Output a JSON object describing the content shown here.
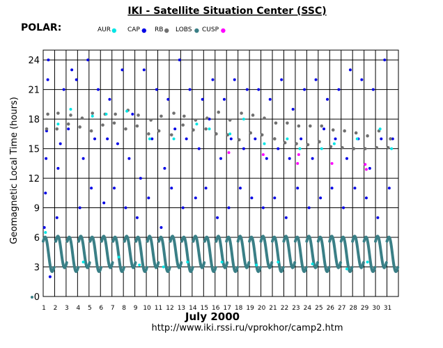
{
  "title": "IKI - Satellite Situation Center (SSC)",
  "satellite": "POLAR:",
  "footer_url": "http://www.iki.rssi.ru/vprokhor/camp2.htm",
  "colors": {
    "AUR": "#00e5e5",
    "CAP": "#0000e6",
    "RB": "#707070",
    "LOBS": "#3a7f86",
    "CUSP": "#ff00ff"
  },
  "chart_data": {
    "type": "scatter",
    "title": "IKI - Satellite Situation Center (SSC)",
    "ylabel": "Geomagnetic  Local Time  (hours)",
    "xlabel": "July    2000",
    "xlim": [
      1,
      32
    ],
    "ylim": [
      0,
      25
    ],
    "y_ticks": [
      0,
      3,
      6,
      9,
      12,
      15,
      18,
      21,
      24
    ],
    "x_ticks": [
      1,
      2,
      3,
      4,
      5,
      6,
      7,
      8,
      9,
      10,
      11,
      12,
      13,
      14,
      15,
      16,
      17,
      18,
      19,
      20,
      21,
      22,
      23,
      24,
      25,
      26,
      27,
      28,
      29,
      30,
      31
    ],
    "legend": [
      {
        "name": "AUR",
        "color": "#00e5e5"
      },
      {
        "name": "CAP",
        "color": "#0000e6"
      },
      {
        "name": "RB",
        "color": "#707070"
      },
      {
        "name": "LOBS",
        "color": "#3a7f86"
      },
      {
        "name": "CUSP",
        "color": "#ff00ff"
      }
    ],
    "grid": true,
    "orbit_start_days": [
      1.0,
      2.1,
      3.1,
      4.1,
      5.1,
      6.1,
      7.1,
      8.1,
      9.1,
      10.1,
      11.1,
      12.1,
      13.1,
      14.1,
      15.1,
      16.1,
      17.0,
      18.0,
      19.0,
      20.0,
      21.0,
      22.0,
      23.0,
      24.0,
      25.0,
      26.0,
      27.0,
      28.0,
      29.0,
      30.0,
      31.0
    ],
    "series": [
      {
        "name": "CAP",
        "points": [
          [
            1.1,
            7
          ],
          [
            1.2,
            10.5
          ],
          [
            1.25,
            14
          ],
          [
            1.3,
            16.8
          ],
          [
            1.4,
            22
          ],
          [
            1.45,
            24
          ],
          [
            1.6,
            2
          ],
          [
            2.2,
            8
          ],
          [
            2.3,
            13
          ],
          [
            2.5,
            15.5
          ],
          [
            2.8,
            21
          ],
          [
            3.2,
            17
          ],
          [
            3.5,
            23
          ],
          [
            3.9,
            22
          ],
          [
            4.2,
            9
          ],
          [
            4.5,
            14
          ],
          [
            4.9,
            24
          ],
          [
            5.2,
            11
          ],
          [
            5.5,
            16
          ],
          [
            5.8,
            21
          ],
          [
            6.3,
            9.5
          ],
          [
            6.6,
            16
          ],
          [
            6.8,
            20
          ],
          [
            7.2,
            11
          ],
          [
            7.5,
            15.5
          ],
          [
            7.9,
            23
          ],
          [
            8.2,
            9
          ],
          [
            8.5,
            14
          ],
          [
            8.8,
            18.5
          ],
          [
            9.2,
            8
          ],
          [
            9.5,
            12
          ],
          [
            9.8,
            23
          ],
          [
            10.2,
            10
          ],
          [
            10.5,
            16
          ],
          [
            10.9,
            21
          ],
          [
            11.3,
            7
          ],
          [
            11.6,
            13
          ],
          [
            11.9,
            20
          ],
          [
            12.2,
            11
          ],
          [
            12.5,
            17
          ],
          [
            12.9,
            24
          ],
          [
            13.2,
            9
          ],
          [
            13.5,
            16
          ],
          [
            13.8,
            21
          ],
          [
            14.3,
            10
          ],
          [
            14.6,
            15
          ],
          [
            14.9,
            20
          ],
          [
            15.2,
            11
          ],
          [
            15.5,
            18
          ],
          [
            15.8,
            22
          ],
          [
            16.2,
            8
          ],
          [
            16.5,
            14
          ],
          [
            16.8,
            20
          ],
          [
            17.2,
            9
          ],
          [
            17.4,
            16
          ],
          [
            17.7,
            22
          ],
          [
            18.2,
            11
          ],
          [
            18.5,
            15
          ],
          [
            18.8,
            21
          ],
          [
            19.2,
            10
          ],
          [
            19.5,
            16
          ],
          [
            19.8,
            21
          ],
          [
            20.2,
            9
          ],
          [
            20.5,
            14
          ],
          [
            20.8,
            20
          ],
          [
            21.2,
            10
          ],
          [
            21.5,
            15
          ],
          [
            21.8,
            22
          ],
          [
            22.2,
            8
          ],
          [
            22.5,
            14
          ],
          [
            22.8,
            19
          ],
          [
            23.2,
            11
          ],
          [
            23.5,
            16
          ],
          [
            23.8,
            21
          ],
          [
            24.2,
            9
          ],
          [
            24.5,
            14
          ],
          [
            24.8,
            22
          ],
          [
            25.2,
            10
          ],
          [
            25.5,
            17
          ],
          [
            25.8,
            20
          ],
          [
            26.2,
            11
          ],
          [
            26.5,
            16
          ],
          [
            26.8,
            21
          ],
          [
            27.2,
            9
          ],
          [
            27.5,
            14
          ],
          [
            27.8,
            23
          ],
          [
            28.2,
            11
          ],
          [
            28.5,
            16
          ],
          [
            28.8,
            22
          ],
          [
            29.2,
            10
          ],
          [
            29.5,
            13
          ],
          [
            29.8,
            21
          ],
          [
            30.2,
            8
          ],
          [
            30.5,
            16
          ],
          [
            30.8,
            24
          ],
          [
            31.2,
            11
          ],
          [
            31.5,
            16
          ]
        ]
      },
      {
        "name": "RB",
        "points": [
          [
            1.3,
            17
          ],
          [
            1.4,
            18.5
          ],
          [
            2.2,
            17
          ],
          [
            2.3,
            18.6
          ],
          [
            3.2,
            17.5
          ],
          [
            3.4,
            18.4
          ],
          [
            4.2,
            17.2
          ],
          [
            4.4,
            18.1
          ],
          [
            5.2,
            16.8
          ],
          [
            5.3,
            18.6
          ],
          [
            6.2,
            17.4
          ],
          [
            6.4,
            18.5
          ],
          [
            7.2,
            17.6
          ],
          [
            7.3,
            18.5
          ],
          [
            8.2,
            17.0
          ],
          [
            8.4,
            18.9
          ],
          [
            9.2,
            17.3
          ],
          [
            9.3,
            18.4
          ],
          [
            10.2,
            16.5
          ],
          [
            10.4,
            17.9
          ],
          [
            11.1,
            16.8
          ],
          [
            11.3,
            18.3
          ],
          [
            12.2,
            16.4
          ],
          [
            12.4,
            18.6
          ],
          [
            13.2,
            17.4
          ],
          [
            13.3,
            18.3
          ],
          [
            14.1,
            16.9
          ],
          [
            14.3,
            17.9
          ],
          [
            15.2,
            17.0
          ],
          [
            15.3,
            18.1
          ],
          [
            16.1,
            16.5
          ],
          [
            16.3,
            18.7
          ],
          [
            17.1,
            16.4
          ],
          [
            17.3,
            17.9
          ],
          [
            18.1,
            15.9
          ],
          [
            18.3,
            18.6
          ],
          [
            19.1,
            16.6
          ],
          [
            19.3,
            18.4
          ],
          [
            20.1,
            16.4
          ],
          [
            20.3,
            18.1
          ],
          [
            21.2,
            16.0
          ],
          [
            21.3,
            17.6
          ],
          [
            22.1,
            15.6
          ],
          [
            22.3,
            17.6
          ],
          [
            23.1,
            15.5
          ],
          [
            23.3,
            17.3
          ],
          [
            24.1,
            15.4
          ],
          [
            24.3,
            17.3
          ],
          [
            25.1,
            15.7
          ],
          [
            25.3,
            17.3
          ],
          [
            26.1,
            15.2
          ],
          [
            26.3,
            16.9
          ],
          [
            27.1,
            15.1
          ],
          [
            27.3,
            16.8
          ],
          [
            28.1,
            15.0
          ],
          [
            28.3,
            16.6
          ],
          [
            29.1,
            15.0
          ],
          [
            29.3,
            16.3
          ],
          [
            30.1,
            15.1
          ],
          [
            30.3,
            16.8
          ],
          [
            31.1,
            15.1
          ],
          [
            31.3,
            16.0
          ]
        ]
      },
      {
        "name": "CUSP",
        "points": [
          [
            17.2,
            14.6
          ],
          [
            20.2,
            14.4
          ],
          [
            23.2,
            13.5
          ],
          [
            23.3,
            14.4
          ],
          [
            26.2,
            13.5
          ],
          [
            29.1,
            13.4
          ],
          [
            29.2,
            12.9
          ]
        ]
      },
      {
        "name": "AUR",
        "points": [
          [
            1.2,
            6.5
          ],
          [
            2.3,
            17.5
          ],
          [
            3.4,
            19
          ],
          [
            4.5,
            3.5
          ],
          [
            5.3,
            18.3
          ],
          [
            6.5,
            18.5
          ],
          [
            7.6,
            4
          ],
          [
            8.3,
            18.8
          ],
          [
            9.4,
            3.2
          ],
          [
            10.3,
            16
          ],
          [
            11.5,
            3
          ],
          [
            12.4,
            16
          ],
          [
            13.6,
            3.5
          ],
          [
            14.4,
            17.5
          ],
          [
            15.5,
            17
          ],
          [
            16.6,
            3.5
          ],
          [
            17.3,
            16.5
          ],
          [
            18.5,
            18
          ],
          [
            19.6,
            3.2
          ],
          [
            20.3,
            15.5
          ],
          [
            21.5,
            3.5
          ],
          [
            22.3,
            16
          ],
          [
            23.4,
            15
          ],
          [
            24.5,
            3.3
          ],
          [
            25.3,
            15
          ],
          [
            26.4,
            15.5
          ],
          [
            27.5,
            2.8
          ],
          [
            28.4,
            16
          ],
          [
            29.3,
            3.5
          ],
          [
            30.4,
            17
          ],
          [
            31.4,
            15
          ]
        ]
      }
    ],
    "lobs_note": "LOBS forms a continuous trace between ~2 and ~6.5 hours each orbit"
  }
}
